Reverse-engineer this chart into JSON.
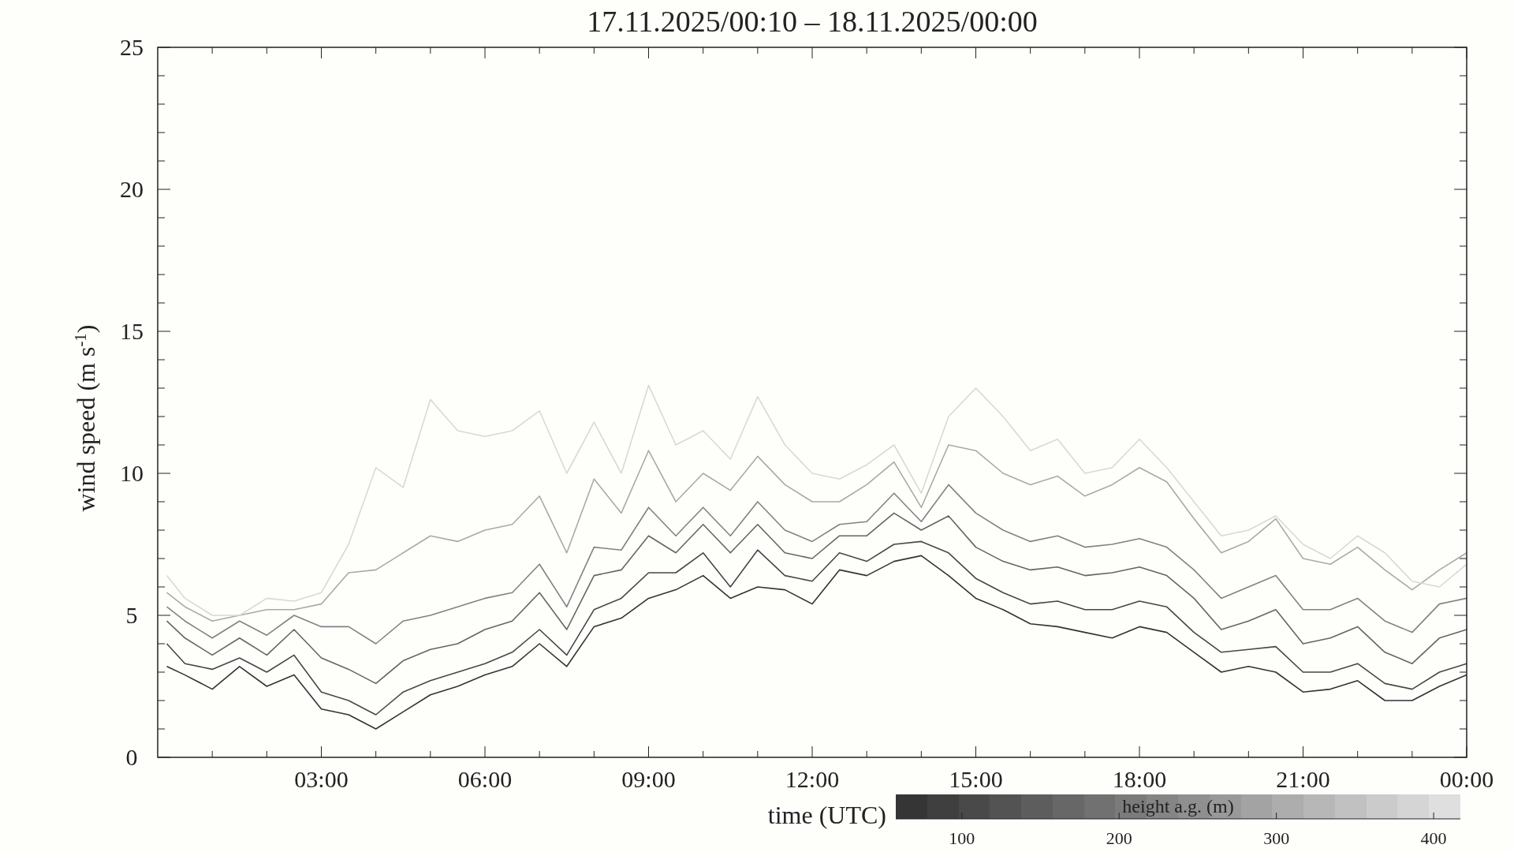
{
  "chart_data": {
    "type": "line",
    "title": "17.11.2025/00:10 – 18.11.2025/00:00",
    "xlabel": "time (UTC)",
    "ylabel": "wind speed (m s$^{-1}$)",
    "clabel": "height a.g. (m)",
    "clim": [
      58,
      417
    ],
    "cticks": [
      100,
      200,
      300,
      400
    ],
    "xlim": [
      0,
      24
    ],
    "ylim": [
      0,
      25
    ],
    "xticks": [
      {
        "value": 1,
        "label": null
      },
      {
        "value": 2,
        "label": null
      },
      {
        "value": 3,
        "label": "03:00"
      },
      {
        "value": 4,
        "label": null
      },
      {
        "value": 5,
        "label": null
      },
      {
        "value": 6,
        "label": "06:00"
      },
      {
        "value": 7,
        "label": null
      },
      {
        "value": 8,
        "label": null
      },
      {
        "value": 9,
        "label": "09:00"
      },
      {
        "value": 10,
        "label": null
      },
      {
        "value": 11,
        "label": null
      },
      {
        "value": 12,
        "label": "12:00"
      },
      {
        "value": 13,
        "label": null
      },
      {
        "value": 14,
        "label": null
      },
      {
        "value": 15,
        "label": "15:00"
      },
      {
        "value": 16,
        "label": null
      },
      {
        "value": 17,
        "label": null
      },
      {
        "value": 18,
        "label": "18:00"
      },
      {
        "value": 19,
        "label": null
      },
      {
        "value": 20,
        "label": null
      },
      {
        "value": 21,
        "label": "21:00"
      },
      {
        "value": 22,
        "label": null
      },
      {
        "value": 23,
        "label": null
      },
      {
        "value": 24,
        "label": "00:00"
      }
    ],
    "yticks": [
      0,
      {
        "value": 1,
        "label": null
      },
      {
        "value": 2,
        "label": null
      },
      {
        "value": 3,
        "label": null
      },
      {
        "value": 4,
        "label": null
      },
      5,
      {
        "value": 6,
        "label": null
      },
      {
        "value": 7,
        "label": null
      },
      {
        "value": 8,
        "label": null
      },
      {
        "value": 9,
        "label": null
      },
      10,
      {
        "value": 11,
        "label": null
      },
      {
        "value": 12,
        "label": null
      },
      {
        "value": 13,
        "label": null
      },
      {
        "value": 14,
        "label": null
      },
      15,
      {
        "value": 16,
        "label": null
      },
      {
        "value": 17,
        "label": null
      },
      {
        "value": 18,
        "label": null
      },
      {
        "value": 19,
        "label": null
      },
      20,
      {
        "value": 21,
        "label": null
      },
      {
        "value": 22,
        "label": null
      },
      {
        "value": 23,
        "label": null
      },
      {
        "value": 24,
        "label": null
      },
      25
    ],
    "grid": false,
    "marker": "none",
    "line_style": "solid",
    "x": [
      0.1667,
      0.5,
      1,
      1.5,
      2,
      2.5,
      3,
      3.5,
      4,
      4.5,
      5,
      5.5,
      6,
      6.5,
      7,
      7.5,
      8,
      8.5,
      9,
      9.5,
      10,
      10.5,
      11,
      11.5,
      12,
      12.5,
      13,
      13.5,
      14,
      14.5,
      15,
      15.5,
      16,
      16.5,
      17,
      17.5,
      18,
      18.5,
      19,
      19.5,
      20,
      20.5,
      21,
      21.5,
      22,
      22.5,
      23,
      23.5,
      24
    ],
    "series": [
      {
        "color": "#333333",
        "values": [
          3.2,
          2.9,
          2.4,
          3.2,
          2.5,
          2.9,
          1.7,
          1.5,
          1.0,
          1.6,
          2.2,
          2.5,
          2.9,
          3.2,
          4.0,
          3.2,
          4.6,
          4.9,
          5.6,
          5.9,
          6.4,
          5.6,
          6.0,
          5.9,
          5.4,
          6.6,
          6.4,
          6.9,
          7.1,
          6.4,
          5.6,
          5.2,
          4.7,
          4.6,
          4.4,
          4.2,
          4.6,
          4.4,
          3.7,
          3.0,
          3.2,
          3.0,
          2.3,
          2.4,
          2.7,
          2.0,
          2.0,
          2.5,
          2.9
        ]
      },
      {
        "color": "#474747",
        "values": [
          4.0,
          3.3,
          3.1,
          3.5,
          3.0,
          3.6,
          2.3,
          2.0,
          1.5,
          2.3,
          2.7,
          3.0,
          3.3,
          3.7,
          4.5,
          3.6,
          5.2,
          5.6,
          6.5,
          6.5,
          7.2,
          6.0,
          7.3,
          6.4,
          6.2,
          7.2,
          6.9,
          7.5,
          7.6,
          7.2,
          6.3,
          5.8,
          5.4,
          5.5,
          5.2,
          5.2,
          5.5,
          5.3,
          4.4,
          3.7,
          3.8,
          3.9,
          3.0,
          3.0,
          3.3,
          2.6,
          2.4,
          3.0,
          3.3
        ]
      },
      {
        "color": "#656565",
        "values": [
          4.8,
          4.2,
          3.6,
          4.2,
          3.6,
          4.5,
          3.5,
          3.1,
          2.6,
          3.4,
          3.8,
          4.0,
          4.5,
          4.8,
          5.8,
          4.5,
          6.4,
          6.6,
          7.8,
          7.2,
          8.2,
          7.2,
          8.2,
          7.2,
          7.0,
          7.8,
          7.8,
          8.6,
          8.0,
          8.5,
          7.4,
          6.9,
          6.6,
          6.7,
          6.4,
          6.5,
          6.7,
          6.4,
          5.6,
          4.5,
          4.8,
          5.2,
          4.0,
          4.2,
          4.6,
          3.7,
          3.3,
          4.2,
          4.5
        ]
      },
      {
        "color": "#828282",
        "values": [
          5.3,
          4.8,
          4.2,
          4.8,
          4.3,
          5.0,
          4.6,
          4.6,
          4.0,
          4.8,
          5.0,
          5.3,
          5.6,
          5.8,
          6.8,
          5.3,
          7.4,
          7.3,
          8.8,
          7.8,
          8.8,
          7.8,
          9.0,
          8.0,
          7.6,
          8.2,
          8.3,
          9.3,
          8.3,
          9.6,
          8.6,
          8.0,
          7.6,
          7.8,
          7.4,
          7.5,
          7.7,
          7.4,
          6.6,
          5.6,
          6.0,
          6.4,
          5.2,
          5.2,
          5.6,
          4.8,
          4.4,
          5.4,
          5.6
        ]
      },
      {
        "color": "#a9a9a9",
        "values": [
          5.8,
          5.3,
          4.8,
          5.0,
          5.2,
          5.2,
          5.4,
          6.5,
          6.6,
          7.2,
          7.8,
          7.6,
          8.0,
          8.2,
          9.2,
          7.2,
          9.8,
          8.6,
          10.8,
          9.0,
          10.0,
          9.4,
          10.6,
          9.6,
          9.0,
          9.0,
          9.6,
          10.4,
          8.8,
          11.0,
          10.8,
          10.0,
          9.6,
          9.9,
          9.2,
          9.6,
          10.2,
          9.7,
          8.4,
          7.2,
          7.6,
          8.4,
          7.0,
          6.8,
          7.4,
          6.6,
          5.9,
          6.6,
          7.2
        ]
      },
      {
        "color": "#d8d8d8",
        "values": [
          6.4,
          5.6,
          5.0,
          5.0,
          5.6,
          5.5,
          5.8,
          7.5,
          10.2,
          9.5,
          12.6,
          11.5,
          11.3,
          11.5,
          12.2,
          10.0,
          11.8,
          10.0,
          13.1,
          11.0,
          11.5,
          10.5,
          12.7,
          11.0,
          10.0,
          9.8,
          10.3,
          11.0,
          9.3,
          12.0,
          13.0,
          12.0,
          10.8,
          11.2,
          10.0,
          10.2,
          11.2,
          10.2,
          9.0,
          7.8,
          8.0,
          8.5,
          7.5,
          7.0,
          7.8,
          7.2,
          6.2,
          6.0,
          6.8
        ]
      }
    ]
  }
}
